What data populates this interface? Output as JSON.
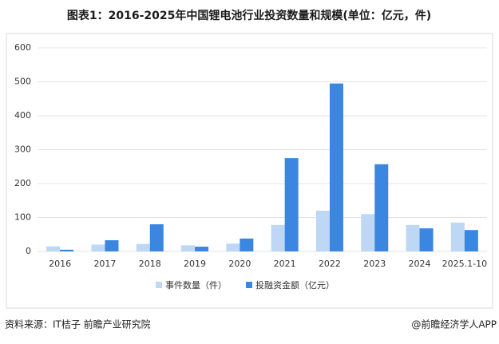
{
  "chart_data": {
    "type": "bar",
    "title": "图表1：2016-2025年中国锂电池行业投资数量和规模(单位：亿元，件)",
    "categories": [
      "2016",
      "2017",
      "2018",
      "2019",
      "2020",
      "2021",
      "2022",
      "2023",
      "2024",
      "2025.1-10"
    ],
    "series": [
      {
        "name": "事件数量（件）",
        "color": "#bdd7f5",
        "values": [
          15,
          20,
          22,
          18,
          23,
          78,
          120,
          110,
          78,
          85
        ]
      },
      {
        "name": "投融资金额（亿元）",
        "color": "#3a86e0",
        "values": [
          5,
          33,
          80,
          14,
          38,
          275,
          495,
          257,
          68,
          63
        ]
      }
    ],
    "ylim": [
      0,
      600
    ],
    "yticks": [
      0,
      100,
      200,
      300,
      400,
      500,
      600
    ],
    "grid": true,
    "source": "资料来源：IT桔子 前瞻产业研究院",
    "credit": "@前瞻经济学人APP"
  }
}
